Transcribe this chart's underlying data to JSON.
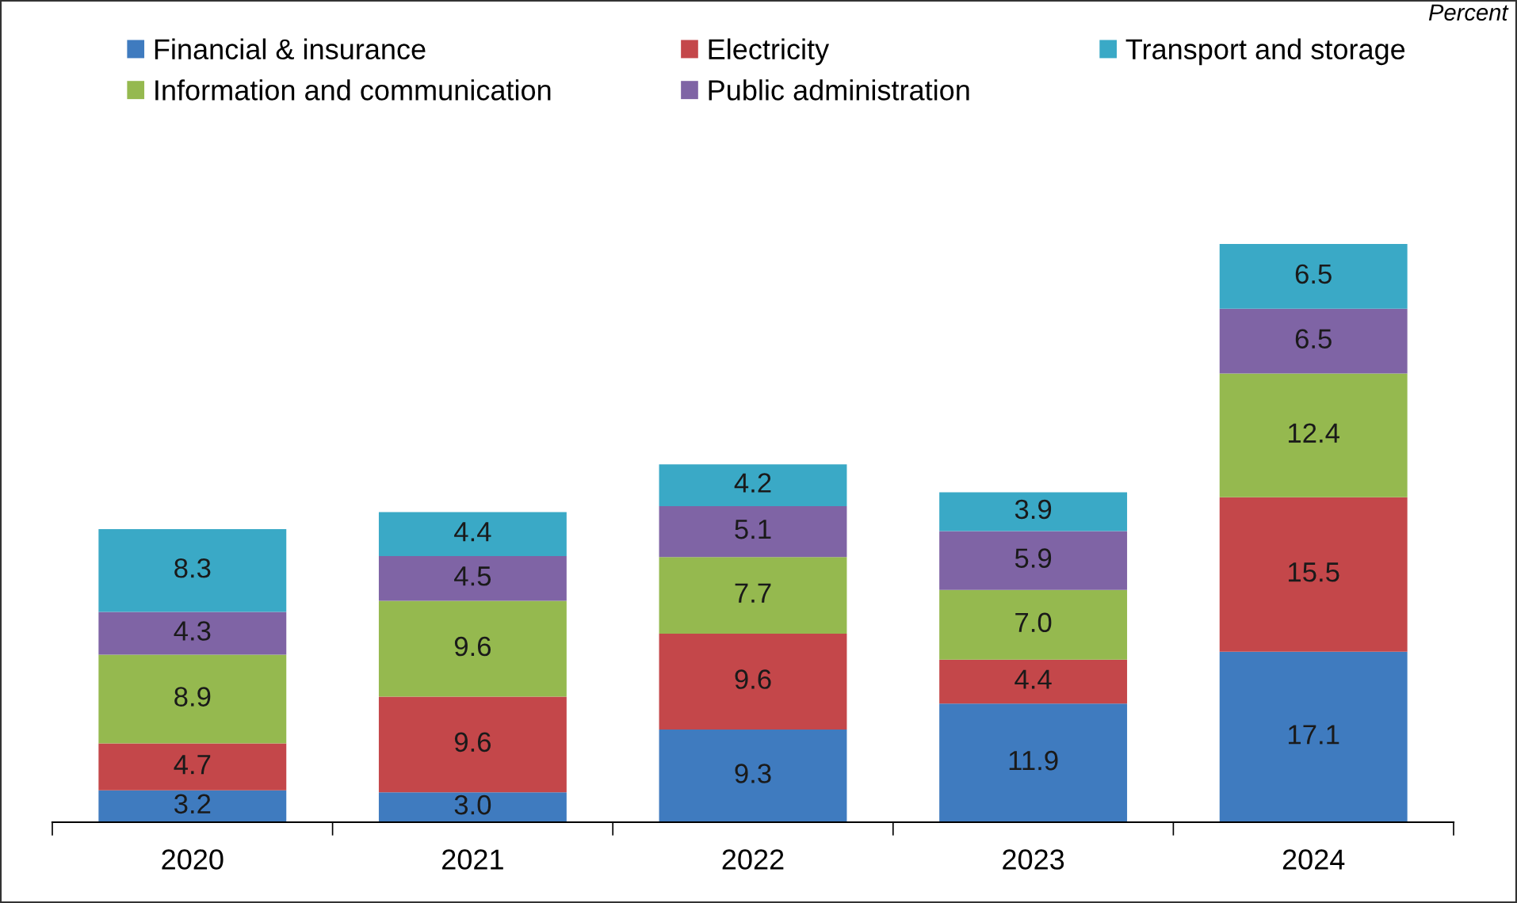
{
  "chart_data": {
    "type": "bar",
    "stacked": true,
    "legend": "top",
    "grid": false,
    "annotations": [
      "Percent"
    ],
    "categories": [
      "2020",
      "2021",
      "2022",
      "2023",
      "2024"
    ],
    "series": [
      {
        "name": "Financial & insurance",
        "color": "#3f7bbf",
        "values": [
          3.2,
          3.0,
          9.3,
          11.9,
          17.1
        ],
        "value_labels": [
          "3.2",
          "3.0",
          "9.3",
          "11.9",
          "17.1"
        ]
      },
      {
        "name": "Electricity",
        "color": "#c4474a",
        "values": [
          4.7,
          9.6,
          9.6,
          4.4,
          15.5
        ],
        "value_labels": [
          "4.7",
          "9.6",
          "9.6",
          "4.4",
          "15.5"
        ]
      },
      {
        "name": "Information and communication",
        "color": "#95b94f",
        "values": [
          8.9,
          9.6,
          7.7,
          7.0,
          12.4
        ],
        "value_labels": [
          "8.9",
          "9.6",
          "7.7",
          "7.0",
          "12.4"
        ]
      },
      {
        "name": "Public administration",
        "color": "#7f64a5",
        "values": [
          4.3,
          4.5,
          5.1,
          5.9,
          6.5
        ],
        "value_labels": [
          "4.3",
          "4.5",
          "5.1",
          "5.9",
          "6.5"
        ]
      },
      {
        "name": "Transport and storage",
        "color": "#3aa9c6",
        "values": [
          8.3,
          4.4,
          4.2,
          3.9,
          6.5
        ],
        "value_labels": [
          "8.3",
          "4.4",
          "4.2",
          "3.9",
          "6.5"
        ]
      }
    ]
  }
}
